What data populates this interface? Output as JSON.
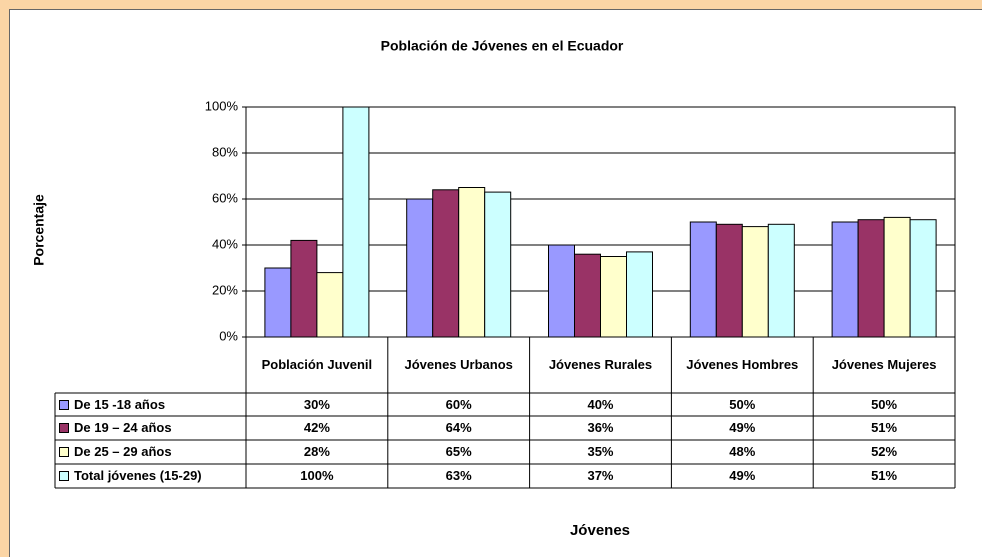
{
  "chart_data": {
    "type": "bar",
    "title": "Población de Jóvenes en el Ecuador",
    "y_label": "Porcentaje",
    "x_label": "Jóvenes",
    "categories": [
      "Población Juvenil",
      "Jóvenes Urbanos",
      "Jóvenes Rurales",
      "Jóvenes Hombres",
      "Jóvenes Mujeres"
    ],
    "series": [
      {
        "name": "De 15  -18 años",
        "color": "#9999ff",
        "values": [
          30,
          60,
          40,
          50,
          50
        ],
        "value_labels": [
          "30%",
          "60%",
          "40%",
          "50%",
          "50%"
        ]
      },
      {
        "name": "De 19 – 24 años",
        "color": "#993366",
        "values": [
          42,
          64,
          36,
          49,
          51
        ],
        "value_labels": [
          "42%",
          "64%",
          "36%",
          "49%",
          "51%"
        ]
      },
      {
        "name": "De 25 – 29 años",
        "color": "#ffffcc",
        "values": [
          28,
          65,
          35,
          48,
          52
        ],
        "value_labels": [
          "28%",
          "65%",
          "35%",
          "48%",
          "52%"
        ]
      },
      {
        "name": "Total jóvenes (15-29)",
        "color": "#ccffff",
        "values": [
          100,
          63,
          37,
          49,
          51
        ],
        "value_labels": [
          "100%",
          "63%",
          "37%",
          "49%",
          "51%"
        ]
      }
    ],
    "ylim": [
      0,
      100
    ],
    "yticks": [
      {
        "value": 0,
        "label": "0%"
      },
      {
        "value": 20,
        "label": "20%"
      },
      {
        "value": 40,
        "label": "40%"
      },
      {
        "value": 60,
        "label": "60%"
      },
      {
        "value": 80,
        "label": "80%"
      },
      {
        "value": 100,
        "label": "100%"
      }
    ],
    "grid": true
  }
}
